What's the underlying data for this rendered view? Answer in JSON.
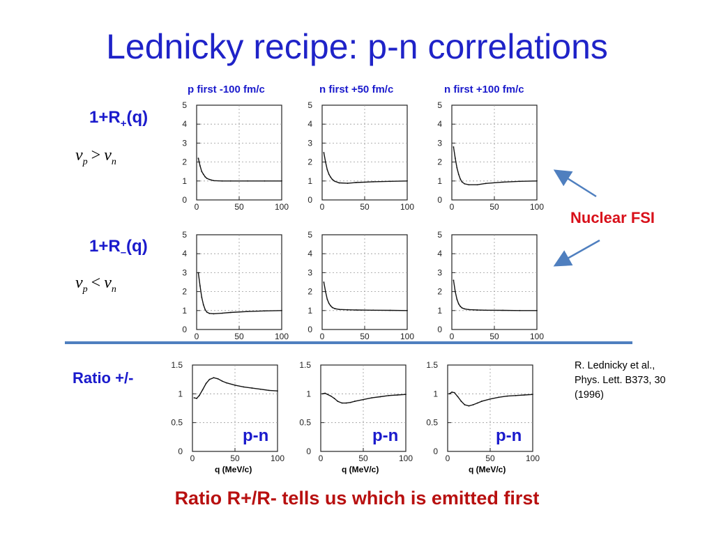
{
  "title": "Lednicky recipe: p-n correlations",
  "columns": [
    "p first -100 fm/c",
    "n first +50 fm/c",
    "n first +100 fm/c"
  ],
  "rows": {
    "plus_label": {
      "main": "1+R",
      "sub": "+",
      "tail": "(q)"
    },
    "minus_label": {
      "main": "1+R",
      "sub": "–",
      "tail": "(q)"
    },
    "plus_cond": {
      "a": "v",
      "a_sub": "p",
      "op": ">",
      "b": "v",
      "b_sub": "n"
    },
    "minus_cond": {
      "a": "v",
      "a_sub": "p",
      "op": "<",
      "b": "v",
      "b_sub": "n"
    }
  },
  "nuclear_fsi": "Nuclear FSI",
  "ratio_label": "Ratio +/-",
  "citation": [
    "R. Lednicky et al.,",
    "Phys. Lett. B373, 30",
    "(1996)"
  ],
  "footer": "Ratio R+/R- tells us which is emitted first",
  "pn_labels": [
    "p-n",
    "p-n",
    "p-n"
  ],
  "x_captions": [
    "q (MeV/c)",
    "q (MeV/c)",
    "q (MeV/c)"
  ],
  "colors": {
    "title": "#1f23c8",
    "label": "#1a1acc",
    "fsi": "#d8101a",
    "footer": "#b81010",
    "divider": "#4f7fbf"
  },
  "chart_data": [
    {
      "type": "line",
      "row": "1+R+(q)",
      "column": "p first -100 fm/c",
      "xlim": [
        0,
        100
      ],
      "ylim": [
        0,
        5
      ],
      "xticks": [
        0,
        50,
        100
      ],
      "yticks": [
        0,
        1,
        2,
        3,
        4,
        5
      ],
      "grid": true,
      "x": [
        2,
        4,
        6,
        8,
        10,
        12,
        15,
        20,
        30,
        40,
        60,
        80,
        100
      ],
      "y": [
        2.2,
        1.8,
        1.5,
        1.35,
        1.22,
        1.14,
        1.08,
        1.02,
        1.0,
        1.0,
        1.0,
        1.0,
        1.0
      ]
    },
    {
      "type": "line",
      "row": "1+R+(q)",
      "column": "n first +50 fm/c",
      "xlim": [
        0,
        100
      ],
      "ylim": [
        0,
        5
      ],
      "xticks": [
        0,
        50,
        100
      ],
      "yticks": [
        0,
        1,
        2,
        3,
        4,
        5
      ],
      "grid": true,
      "x": [
        2,
        4,
        6,
        8,
        10,
        12,
        15,
        20,
        30,
        40,
        60,
        80,
        100
      ],
      "y": [
        2.5,
        2.0,
        1.6,
        1.35,
        1.2,
        1.08,
        0.98,
        0.9,
        0.88,
        0.92,
        0.96,
        0.98,
        1.0
      ]
    },
    {
      "type": "line",
      "row": "1+R+(q)",
      "column": "n first +100 fm/c",
      "xlim": [
        0,
        100
      ],
      "ylim": [
        0,
        5
      ],
      "xticks": [
        0,
        50,
        100
      ],
      "yticks": [
        0,
        1,
        2,
        3,
        4,
        5
      ],
      "grid": true,
      "x": [
        2,
        4,
        6,
        8,
        10,
        12,
        15,
        20,
        30,
        40,
        60,
        80,
        100
      ],
      "y": [
        2.8,
        2.2,
        1.7,
        1.35,
        1.1,
        0.95,
        0.85,
        0.8,
        0.8,
        0.87,
        0.94,
        0.98,
        1.0
      ]
    },
    {
      "type": "line",
      "row": "1+R-(q)",
      "column": "p first -100 fm/c",
      "xlim": [
        0,
        100
      ],
      "ylim": [
        0,
        5
      ],
      "xticks": [
        0,
        50,
        100
      ],
      "yticks": [
        0,
        1,
        2,
        3,
        4,
        5
      ],
      "grid": true,
      "x": [
        2,
        4,
        6,
        8,
        10,
        12,
        15,
        20,
        30,
        40,
        60,
        80,
        100
      ],
      "y": [
        3.0,
        2.3,
        1.7,
        1.3,
        1.05,
        0.92,
        0.85,
        0.83,
        0.86,
        0.9,
        0.95,
        0.98,
        1.0
      ]
    },
    {
      "type": "line",
      "row": "1+R-(q)",
      "column": "n first +50 fm/c",
      "xlim": [
        0,
        100
      ],
      "ylim": [
        0,
        5
      ],
      "xticks": [
        0,
        50,
        100
      ],
      "yticks": [
        0,
        1,
        2,
        3,
        4,
        5
      ],
      "grid": true,
      "x": [
        2,
        4,
        6,
        8,
        10,
        12,
        15,
        20,
        30,
        40,
        60,
        80,
        100
      ],
      "y": [
        2.5,
        2.0,
        1.6,
        1.38,
        1.25,
        1.16,
        1.1,
        1.06,
        1.04,
        1.03,
        1.02,
        1.01,
        1.0
      ]
    },
    {
      "type": "line",
      "row": "1+R-(q)",
      "column": "n first +100 fm/c",
      "xlim": [
        0,
        100
      ],
      "ylim": [
        0,
        5
      ],
      "xticks": [
        0,
        50,
        100
      ],
      "yticks": [
        0,
        1,
        2,
        3,
        4,
        5
      ],
      "grid": true,
      "x": [
        2,
        4,
        6,
        8,
        10,
        12,
        15,
        20,
        30,
        40,
        60,
        80,
        100
      ],
      "y": [
        2.6,
        2.0,
        1.6,
        1.35,
        1.22,
        1.14,
        1.09,
        1.05,
        1.03,
        1.02,
        1.01,
        1.0,
        1.0
      ]
    },
    {
      "type": "line",
      "row": "Ratio +/-",
      "column": "p first -100 fm/c",
      "xlim": [
        0,
        100
      ],
      "ylim": [
        0,
        1.5
      ],
      "xticks": [
        0,
        50,
        100
      ],
      "yticks": [
        0,
        0.5,
        1,
        1.5
      ],
      "grid": true,
      "x": [
        2,
        5,
        8,
        12,
        16,
        20,
        25,
        30,
        35,
        40,
        50,
        60,
        70,
        80,
        90,
        100
      ],
      "y": [
        0.93,
        0.92,
        0.97,
        1.07,
        1.18,
        1.25,
        1.28,
        1.26,
        1.22,
        1.19,
        1.15,
        1.12,
        1.1,
        1.08,
        1.06,
        1.05
      ]
    },
    {
      "type": "line",
      "row": "Ratio +/-",
      "column": "n first +50 fm/c",
      "xlim": [
        0,
        100
      ],
      "ylim": [
        0,
        1.5
      ],
      "xticks": [
        0,
        50,
        100
      ],
      "yticks": [
        0,
        0.5,
        1,
        1.5
      ],
      "grid": true,
      "x": [
        2,
        5,
        8,
        12,
        16,
        20,
        25,
        30,
        35,
        40,
        50,
        60,
        70,
        80,
        90,
        100
      ],
      "y": [
        1.0,
        1.01,
        0.99,
        0.96,
        0.92,
        0.87,
        0.84,
        0.84,
        0.85,
        0.87,
        0.9,
        0.93,
        0.95,
        0.97,
        0.98,
        0.99
      ]
    },
    {
      "type": "line",
      "row": "Ratio +/-",
      "column": "n first +100 fm/c",
      "xlim": [
        0,
        100
      ],
      "ylim": [
        0,
        1.5
      ],
      "xticks": [
        0,
        50,
        100
      ],
      "yticks": [
        0,
        0.5,
        1,
        1.5
      ],
      "grid": true,
      "x": [
        2,
        5,
        8,
        12,
        16,
        20,
        25,
        30,
        35,
        40,
        50,
        60,
        70,
        80,
        90,
        100
      ],
      "y": [
        1.0,
        1.03,
        1.02,
        0.95,
        0.87,
        0.81,
        0.79,
        0.81,
        0.84,
        0.87,
        0.91,
        0.94,
        0.96,
        0.97,
        0.98,
        0.99
      ]
    }
  ]
}
